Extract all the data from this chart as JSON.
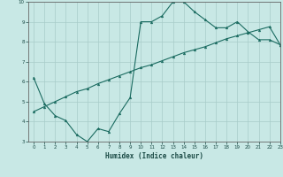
{
  "title": "",
  "xlabel": "Humidex (Indice chaleur)",
  "xlim": [
    -0.5,
    23
  ],
  "ylim": [
    3,
    10
  ],
  "xticks": [
    0,
    1,
    2,
    3,
    4,
    5,
    6,
    7,
    8,
    9,
    10,
    11,
    12,
    13,
    14,
    15,
    16,
    17,
    18,
    19,
    20,
    21,
    22,
    23
  ],
  "yticks": [
    3,
    4,
    5,
    6,
    7,
    8,
    9,
    10
  ],
  "bg_color": "#c8e8e5",
  "grid_color": "#a8ccc9",
  "line_color": "#1a6b60",
  "line1_x": [
    0,
    1,
    2,
    3,
    4,
    5,
    6,
    7,
    8,
    9,
    10,
    11,
    12,
    13,
    14,
    15,
    16,
    17,
    18,
    19,
    20,
    21,
    22,
    23
  ],
  "line1_y": [
    6.2,
    4.9,
    4.3,
    4.05,
    3.35,
    3.0,
    3.65,
    3.5,
    4.4,
    5.2,
    9.0,
    9.0,
    9.3,
    10.0,
    10.0,
    9.5,
    9.1,
    8.7,
    8.7,
    9.0,
    8.5,
    8.1,
    8.1,
    7.85
  ],
  "line2_x": [
    0,
    1,
    2,
    3,
    4,
    5,
    6,
    7,
    8,
    9,
    10,
    11,
    12,
    13,
    14,
    15,
    16,
    17,
    18,
    19,
    20,
    21,
    22,
    23
  ],
  "line2_y": [
    4.5,
    4.75,
    5.0,
    5.25,
    5.5,
    5.65,
    5.9,
    6.1,
    6.3,
    6.5,
    6.7,
    6.85,
    7.05,
    7.25,
    7.45,
    7.6,
    7.75,
    7.95,
    8.15,
    8.3,
    8.45,
    8.6,
    8.75,
    7.85
  ]
}
